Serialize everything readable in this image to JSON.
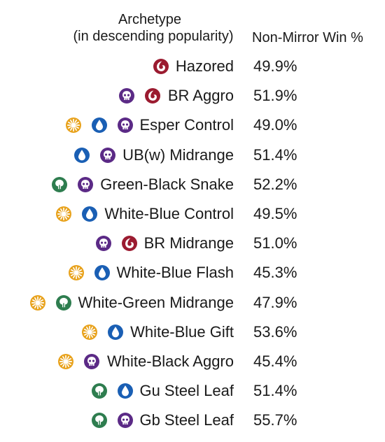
{
  "chart_data": {
    "type": "table",
    "columns": [
      "Archetype (in descending popularity)",
      "Non-Mirror Win %"
    ],
    "header": {
      "archetype_line1": "Archetype",
      "archetype_line2": "(in descending popularity)",
      "win": "Non-Mirror Win %"
    },
    "rows": [
      {
        "archetype": "Hazored",
        "colors": [
          "red"
        ],
        "win": "49.9%"
      },
      {
        "archetype": "BR Aggro",
        "colors": [
          "black",
          "red"
        ],
        "win": "51.9%"
      },
      {
        "archetype": "Esper Control",
        "colors": [
          "white",
          "blue",
          "black"
        ],
        "win": "49.0%"
      },
      {
        "archetype": "UB(w) Midrange",
        "colors": [
          "blue",
          "black"
        ],
        "win": "51.4%"
      },
      {
        "archetype": "Green-Black Snake",
        "colors": [
          "green",
          "black"
        ],
        "win": "52.2%"
      },
      {
        "archetype": "White-Blue Control",
        "colors": [
          "white",
          "blue"
        ],
        "win": "49.5%"
      },
      {
        "archetype": "BR Midrange",
        "colors": [
          "black",
          "red"
        ],
        "win": "51.0%"
      },
      {
        "archetype": "White-Blue Flash",
        "colors": [
          "white",
          "blue"
        ],
        "win": "45.3%"
      },
      {
        "archetype": "White-Green Midrange",
        "colors": [
          "white",
          "green"
        ],
        "win": "47.9%"
      },
      {
        "archetype": "White-Blue Gift",
        "colors": [
          "white",
          "blue"
        ],
        "win": "53.6%"
      },
      {
        "archetype": "White-Black Aggro",
        "colors": [
          "white",
          "black"
        ],
        "win": "45.4%"
      },
      {
        "archetype": "Gu Steel Leaf",
        "colors": [
          "green",
          "blue"
        ],
        "win": "51.4%"
      },
      {
        "archetype": "Gb Steel Leaf",
        "colors": [
          "green",
          "black"
        ],
        "win": "55.7%"
      }
    ],
    "mana_colors": {
      "white": "#e8a21c",
      "blue": "#1a5fb4",
      "black": "#5b2a86",
      "red": "#9b1b30",
      "green": "#2e7d4f"
    }
  }
}
